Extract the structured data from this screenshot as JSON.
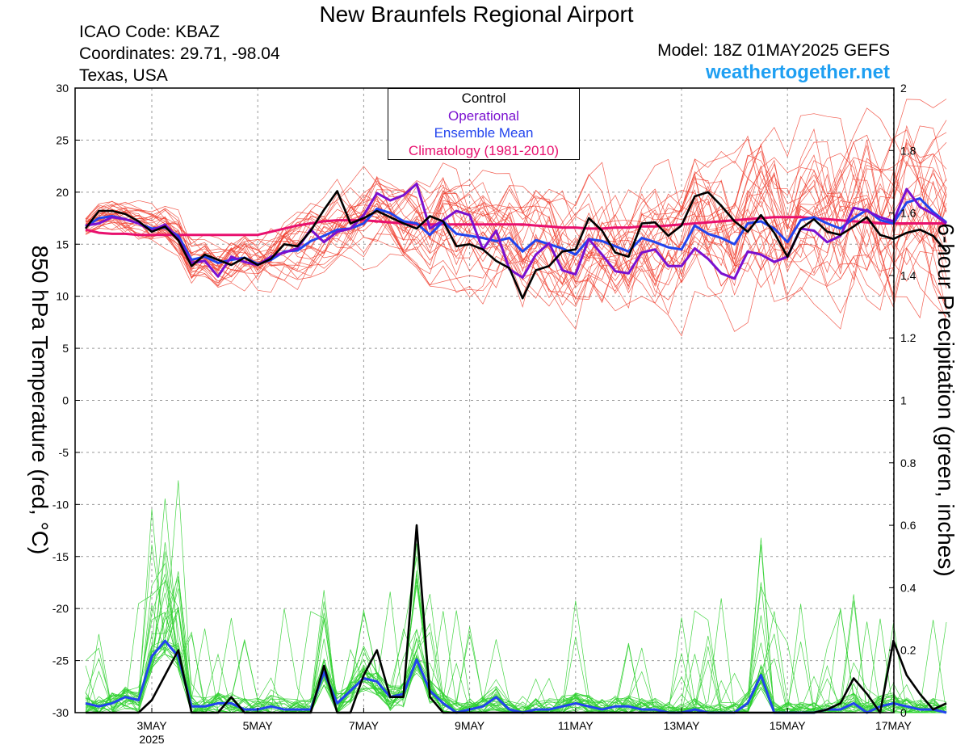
{
  "header": {
    "title": "New Braunfels Regional Airport",
    "icao": "ICAO Code: KBAZ",
    "coordinates": "Coordinates: 29.71, -98.04",
    "region": "Texas, USA",
    "model": "Model: 18Z 01MAY2025 GEFS",
    "site": "weathertogether.net"
  },
  "legend": {
    "control": "Control",
    "operational": "Operational",
    "ensemble_mean": "Ensemble Mean",
    "climatology": "Climatology (1981-2010)"
  },
  "colors": {
    "control": "#000000",
    "operational": "#7a10d0",
    "ensemble_mean": "#2244ee",
    "climatology": "#e8106e",
    "members_temp": "#f04030",
    "members_precip": "#30d030",
    "site": "#1e9ff2"
  },
  "chart_data": {
    "type": "line",
    "title": "New Braunfels Regional Airport",
    "ylabel": "850 hPa Temperature (red, °C)",
    "y2label": "6-hour Precipitation (green, inches)",
    "ylim": [
      -30,
      30
    ],
    "y2lim": [
      0,
      2
    ],
    "yticks": [
      30,
      25,
      20,
      15,
      10,
      5,
      0,
      -5,
      -10,
      -15,
      -20,
      -25,
      -30
    ],
    "y2ticks": [
      "2",
      "1.8",
      "1.6",
      "1.4",
      "1.2",
      "1",
      "0.8",
      "0.6",
      "0.4",
      "0.2",
      "0"
    ],
    "x_start": "2025-05-01 18Z",
    "x_step_hours": 6,
    "xticks": [
      {
        "label": "3MAY",
        "sub": "2025",
        "index": 5
      },
      {
        "label": "5MAY",
        "sub": "",
        "index": 13
      },
      {
        "label": "7MAY",
        "sub": "",
        "index": 21
      },
      {
        "label": "9MAY",
        "sub": "",
        "index": 29
      },
      {
        "label": "11MAY",
        "sub": "",
        "index": 37
      },
      {
        "label": "13MAY",
        "sub": "",
        "index": 45
      },
      {
        "label": "15MAY",
        "sub": "",
        "index": 53
      },
      {
        "label": "17MAY",
        "sub": "",
        "index": 61
      }
    ],
    "grid": true,
    "legend_position": "top-center",
    "series": [
      {
        "name": "Control",
        "axis": "temperature",
        "values": [
          16.5,
          18.2,
          18.2,
          17.9,
          17.2,
          16.2,
          16.7,
          15.4,
          12.9,
          14.0,
          13.5,
          13.0,
          13.7,
          13.0,
          13.6,
          15.0,
          14.8,
          16.3,
          18.3,
          20.1,
          17.0,
          17.5,
          18.2,
          17.6,
          17.0,
          16.5,
          17.7,
          17.2,
          14.8,
          15.0,
          14.5,
          13.4,
          12.7,
          9.8,
          12.5,
          12.9,
          14.3,
          14.5,
          17.5,
          16.3,
          14.2,
          13.8,
          17.0,
          17.1,
          15.8,
          16.8,
          19.6,
          20.0,
          18.7,
          17.2,
          16.2,
          17.8,
          16.1,
          13.8,
          16.5,
          17.4,
          16.2,
          15.9,
          16.7,
          17.6,
          15.9,
          15.5,
          16.1,
          16.4,
          15.8,
          14.3
        ]
      },
      {
        "name": "Operational",
        "axis": "temperature",
        "values": [
          16.8,
          17.0,
          17.6,
          17.4,
          17.0,
          16.3,
          16.9,
          15.5,
          13.2,
          13.4,
          11.9,
          13.8,
          13.3,
          13.0,
          13.8,
          14.2,
          14.6,
          16.4,
          15.2,
          16.2,
          16.5,
          17.8,
          19.9,
          19.2,
          19.7,
          20.8,
          16.5,
          17.3,
          18.2,
          17.8,
          14.5,
          16.3,
          12.6,
          11.8,
          14.0,
          15.1,
          12.5,
          12.1,
          15.5,
          14.0,
          12.4,
          12.2,
          14.2,
          14.5,
          12.9,
          12.9,
          14.6,
          13.6,
          12.2,
          11.7,
          14.3,
          14.0,
          13.3,
          13.8,
          16.5,
          16.3,
          15.2,
          15.8,
          18.5,
          18.2,
          17.6,
          17.2,
          20.3,
          18.6,
          17.9,
          17.0
        ]
      },
      {
        "name": "Ensemble Mean",
        "axis": "temperature",
        "values": [
          16.7,
          17.5,
          17.7,
          17.4,
          17.0,
          16.5,
          16.6,
          15.8,
          13.5,
          13.8,
          13.2,
          13.5,
          13.7,
          13.1,
          13.5,
          14.3,
          14.4,
          15.3,
          15.8,
          16.4,
          16.5,
          17.0,
          18.4,
          18.0,
          17.2,
          17.0,
          15.9,
          17.2,
          16.0,
          15.8,
          15.6,
          15.3,
          15.6,
          14.3,
          15.4,
          15.0,
          14.6,
          14.0,
          15.5,
          15.3,
          14.8,
          14.3,
          15.6,
          15.2,
          14.7,
          14.5,
          16.8,
          16.0,
          15.6,
          15.0,
          17.0,
          17.2,
          16.5,
          15.2,
          17.3,
          17.6,
          17.0,
          16.5,
          17.5,
          18.3,
          17.3,
          17.0,
          19.0,
          19.4,
          18.1,
          17.1
        ]
      },
      {
        "name": "Climatology (1981-2010)",
        "axis": "temperature",
        "values": [
          16.4,
          16.1,
          16.0,
          16.0,
          15.9,
          15.9,
          15.9,
          15.9,
          15.9,
          15.9,
          15.9,
          15.9,
          15.9,
          15.9,
          16.2,
          16.5,
          16.8,
          17.0,
          17.2,
          17.3,
          17.3,
          17.3,
          17.2,
          17.1,
          17.0,
          16.9,
          16.9,
          16.9,
          16.9,
          16.9,
          16.9,
          16.9,
          16.9,
          16.9,
          16.8,
          16.7,
          16.6,
          16.6,
          16.5,
          16.5,
          16.6,
          16.6,
          16.7,
          16.7,
          16.8,
          16.9,
          17.0,
          17.1,
          17.2,
          17.3,
          17.4,
          17.5,
          17.6,
          17.6,
          17.6,
          17.5,
          17.4,
          17.3,
          17.2,
          17.1,
          17.0,
          17.0,
          17.0,
          17.0,
          17.0,
          17.0
        ]
      },
      {
        "name": "Control",
        "axis": "precipitation",
        "values": [
          0,
          0,
          0,
          0,
          0,
          0.04,
          0.12,
          0.2,
          0,
          0,
          0,
          0.05,
          0,
          0,
          0,
          0,
          0,
          0,
          0.15,
          0,
          0,
          0.12,
          0.2,
          0.05,
          0.05,
          0.6,
          0.05,
          0,
          0,
          0,
          0,
          0,
          0,
          0,
          0,
          0,
          0,
          0,
          0,
          0,
          0,
          0,
          0,
          0,
          0,
          0,
          0,
          0,
          0,
          0,
          0,
          0,
          0,
          0,
          0,
          0,
          0.01,
          0.03,
          0.11,
          0.06,
          0,
          0.23,
          0.12,
          0.06,
          0.01,
          0.03
        ]
      },
      {
        "name": "Ensemble Mean",
        "axis": "precipitation",
        "values": [
          0.03,
          0.02,
          0.03,
          0.05,
          0.04,
          0.18,
          0.23,
          0.18,
          0.02,
          0.02,
          0.03,
          0.03,
          0.01,
          0.01,
          0.02,
          0.01,
          0.01,
          0.01,
          0.13,
          0.03,
          0.07,
          0.11,
          0.1,
          0.05,
          0.06,
          0.17,
          0.07,
          0.03,
          0,
          0.01,
          0.02,
          0.05,
          0.01,
          0,
          0.01,
          0.01,
          0.02,
          0.03,
          0.02,
          0.01,
          0.02,
          0.02,
          0.01,
          0.01,
          0,
          0,
          0.01,
          0,
          0,
          0,
          0.03,
          0.12,
          0,
          0,
          0,
          0,
          0.01,
          0.01,
          0.03,
          0,
          0.02,
          0.03,
          0.02,
          0.01,
          0.01,
          0
        ]
      }
    ]
  }
}
